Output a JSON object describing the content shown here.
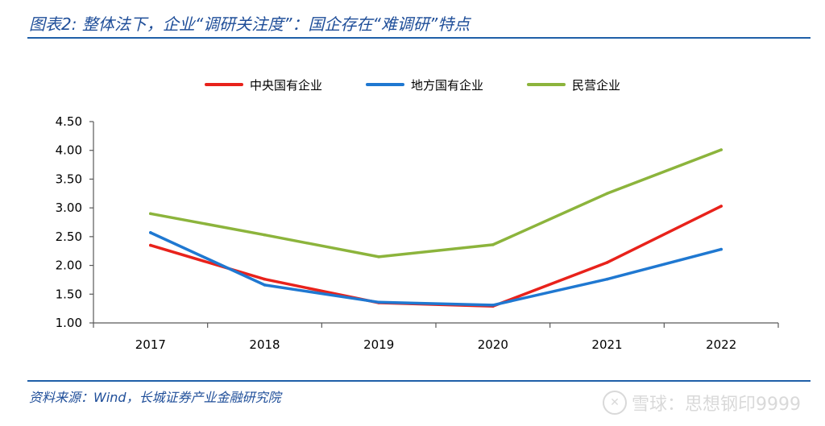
{
  "figure": {
    "title": "图表2: 整体法下，企业“调研关注度”：国企存在“难调研”特点",
    "source": "资料来源：Wind，长城证券产业金融研究院",
    "watermark": "雪球：思想钢印9999",
    "watermark_icon": "snowball-logo-icon"
  },
  "chart_data": {
    "type": "line",
    "title": "",
    "xlabel": "",
    "ylabel": "",
    "categories": [
      "2017",
      "2018",
      "2019",
      "2020",
      "2021",
      "2022"
    ],
    "ylim": [
      1.0,
      4.5
    ],
    "yticks": [
      1.0,
      1.5,
      2.0,
      2.5,
      3.0,
      3.5,
      4.0,
      4.5
    ],
    "ytick_labels": [
      "1.00",
      "1.50",
      "2.00",
      "2.50",
      "3.00",
      "3.50",
      "4.00",
      "4.50"
    ],
    "grid": false,
    "legend_position": "top",
    "series": [
      {
        "name": "中央国有企业",
        "color": "#e8221b",
        "values": [
          2.35,
          1.76,
          1.35,
          1.29,
          2.05,
          3.03
        ]
      },
      {
        "name": "地方国有企业",
        "color": "#1f78d1",
        "values": [
          2.57,
          1.66,
          1.36,
          1.31,
          1.76,
          2.28
        ]
      },
      {
        "name": "民营企业",
        "color": "#8cb43c",
        "values": [
          2.9,
          2.53,
          2.15,
          2.36,
          3.25,
          4.01
        ]
      }
    ]
  }
}
